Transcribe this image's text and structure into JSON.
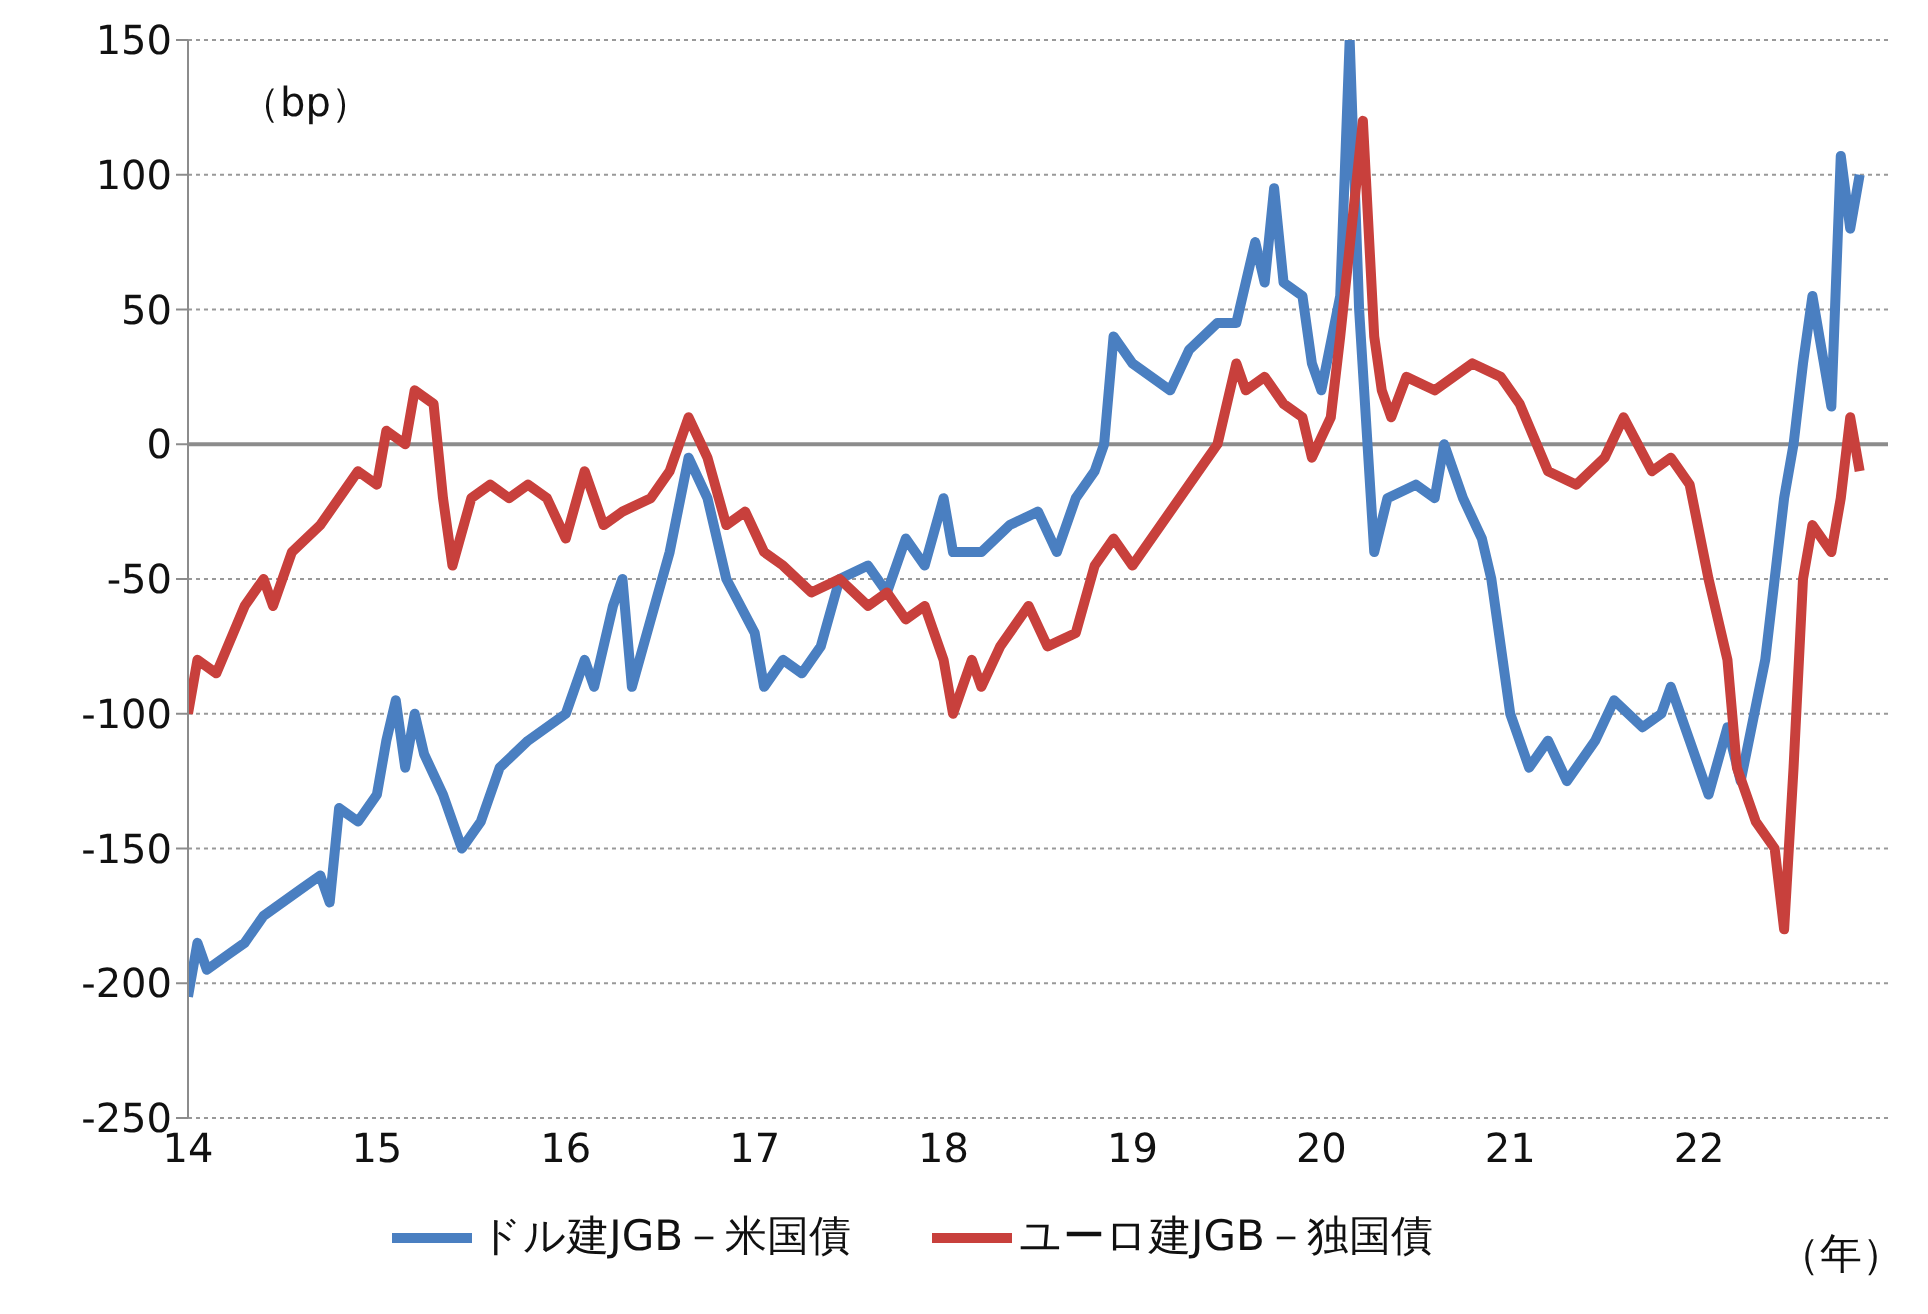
{
  "chart_data": {
    "type": "line",
    "xlabel": "（年）",
    "ylabel": "（bp）",
    "xlim": [
      14,
      23
    ],
    "xticks": [
      14,
      15,
      16,
      17,
      18,
      19,
      20,
      21,
      22
    ],
    "ylim": [
      -250,
      150
    ],
    "yticks": [
      -250,
      -200,
      -150,
      -100,
      -50,
      0,
      50,
      100,
      150
    ],
    "grid": "y",
    "legend": "bottom",
    "marker": "none",
    "line_style": "solid",
    "ref_lines": [
      {
        "axis": "y",
        "value": 0,
        "color": "#8c8c8c"
      }
    ],
    "series": [
      {
        "name": "ドル建JGB－米国債",
        "color": "#4a7fc1",
        "x": [
          14.0,
          14.05,
          14.1,
          14.2,
          14.3,
          14.4,
          14.5,
          14.6,
          14.7,
          14.75,
          14.8,
          14.9,
          15.0,
          15.05,
          15.1,
          15.15,
          15.2,
          15.25,
          15.35,
          15.45,
          15.55,
          15.65,
          15.8,
          16.0,
          16.1,
          16.15,
          16.25,
          16.3,
          16.35,
          16.45,
          16.55,
          16.65,
          16.75,
          16.85,
          17.0,
          17.05,
          17.15,
          17.25,
          17.35,
          17.45,
          17.6,
          17.7,
          17.8,
          17.9,
          18.0,
          18.05,
          18.2,
          18.35,
          18.5,
          18.6,
          18.7,
          18.8,
          18.85,
          18.9,
          19.0,
          19.1,
          19.2,
          19.3,
          19.45,
          19.55,
          19.65,
          19.7,
          19.75,
          19.8,
          19.9,
          19.95,
          20.0,
          20.1,
          20.15,
          20.2,
          20.28,
          20.35,
          20.5,
          20.6,
          20.65,
          20.75,
          20.85,
          20.9,
          21.0,
          21.1,
          21.2,
          21.3,
          21.45,
          21.55,
          21.7,
          21.8,
          21.85,
          21.95,
          22.05,
          22.15,
          22.22,
          22.35,
          22.45,
          22.5,
          22.55,
          22.6,
          22.7,
          22.75,
          22.8,
          22.85
        ],
        "values": [
          -205,
          -185,
          -195,
          -190,
          -185,
          -175,
          -170,
          -165,
          -160,
          -170,
          -135,
          -140,
          -130,
          -110,
          -95,
          -120,
          -100,
          -115,
          -130,
          -150,
          -140,
          -120,
          -110,
          -100,
          -80,
          -90,
          -60,
          -50,
          -90,
          -65,
          -40,
          -5,
          -20,
          -50,
          -70,
          -90,
          -80,
          -85,
          -75,
          -50,
          -45,
          -55,
          -35,
          -45,
          -20,
          -40,
          -40,
          -30,
          -25,
          -40,
          -20,
          -10,
          0,
          40,
          30,
          25,
          20,
          35,
          45,
          45,
          75,
          60,
          95,
          60,
          55,
          30,
          20,
          55,
          150,
          50,
          -40,
          -20,
          -15,
          -20,
          0,
          -20,
          -35,
          -50,
          -100,
          -120,
          -110,
          -125,
          -110,
          -95,
          -105,
          -100,
          -90,
          -110,
          -130,
          -105,
          -125,
          -80,
          -20,
          0,
          30,
          55,
          14,
          107,
          80,
          100
        ]
      },
      {
        "name": "ユーロ建JGB－独国債",
        "color": "#c8403c",
        "x": [
          14.0,
          14.05,
          14.15,
          14.3,
          14.4,
          14.45,
          14.55,
          14.7,
          14.8,
          14.9,
          15.0,
          15.05,
          15.15,
          15.2,
          15.3,
          15.35,
          15.4,
          15.5,
          15.6,
          15.7,
          15.8,
          15.9,
          16.0,
          16.1,
          16.2,
          16.3,
          16.45,
          16.55,
          16.65,
          16.75,
          16.85,
          16.95,
          17.05,
          17.15,
          17.3,
          17.45,
          17.6,
          17.7,
          17.8,
          17.9,
          18.0,
          18.05,
          18.15,
          18.2,
          18.3,
          18.45,
          18.55,
          18.7,
          18.8,
          18.9,
          19.0,
          19.1,
          19.2,
          19.35,
          19.45,
          19.55,
          19.6,
          19.7,
          19.8,
          19.9,
          19.95,
          20.05,
          20.1,
          20.22,
          20.28,
          20.32,
          20.37,
          20.45,
          20.6,
          20.8,
          20.95,
          21.05,
          21.2,
          21.35,
          21.5,
          21.6,
          21.75,
          21.85,
          21.95,
          22.05,
          22.15,
          22.2,
          22.3,
          22.4,
          22.45,
          22.5,
          22.55,
          22.6,
          22.7,
          22.75,
          22.8,
          22.85
        ],
        "values": [
          -100,
          -80,
          -85,
          -60,
          -50,
          -60,
          -40,
          -30,
          -20,
          -10,
          -15,
          5,
          0,
          20,
          15,
          -20,
          -45,
          -20,
          -15,
          -20,
          -15,
          -20,
          -35,
          -10,
          -30,
          -25,
          -20,
          -10,
          10,
          -5,
          -30,
          -25,
          -40,
          -45,
          -55,
          -50,
          -60,
          -55,
          -65,
          -60,
          -80,
          -100,
          -80,
          -90,
          -75,
          -60,
          -75,
          -70,
          -45,
          -35,
          -45,
          -35,
          -25,
          -10,
          0,
          30,
          20,
          25,
          15,
          10,
          -5,
          10,
          40,
          120,
          40,
          20,
          10,
          25,
          20,
          30,
          25,
          15,
          -10,
          -15,
          -5,
          10,
          -10,
          -5,
          -15,
          -50,
          -80,
          -120,
          -140,
          -150,
          -180,
          -120,
          -50,
          -30,
          -40,
          -20,
          10,
          -10
        ]
      }
    ]
  }
}
